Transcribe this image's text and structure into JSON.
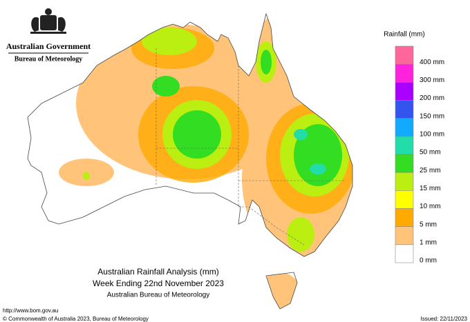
{
  "header": {
    "government": "Australian Government",
    "agency": "Bureau of Meteorology"
  },
  "legend": {
    "title": "Rainfall (mm)",
    "items": [
      {
        "label": "400 mm",
        "color": "#ff6699"
      },
      {
        "label": "300 mm",
        "color": "#ff22dd"
      },
      {
        "label": "200 mm",
        "color": "#aa00ff"
      },
      {
        "label": "150 mm",
        "color": "#3355ee"
      },
      {
        "label": "100 mm",
        "color": "#11aaff"
      },
      {
        "label": "50 mm",
        "color": "#22ddaa"
      },
      {
        "label": "25 mm",
        "color": "#33dd22"
      },
      {
        "label": "15 mm",
        "color": "#bbee11"
      },
      {
        "label": "10 mm",
        "color": "#ffff00"
      },
      {
        "label": "5 mm",
        "color": "#ffaa00"
      },
      {
        "label": "1 mm",
        "color": "#ffc47a"
      },
      {
        "label": "0 mm",
        "color": "#ffffff"
      }
    ]
  },
  "map": {
    "title": "Australian Rainfall Analysis (mm)",
    "subtitle": "Week Ending 22nd November 2023",
    "credit": "Australian Bureau of Meteorology"
  },
  "footer": {
    "url": "http://www.bom.gov.au",
    "copyright": "© Commonwealth of Australia 2023, Bureau of Meteorology",
    "issued": "Issued: 22/11/2023"
  }
}
